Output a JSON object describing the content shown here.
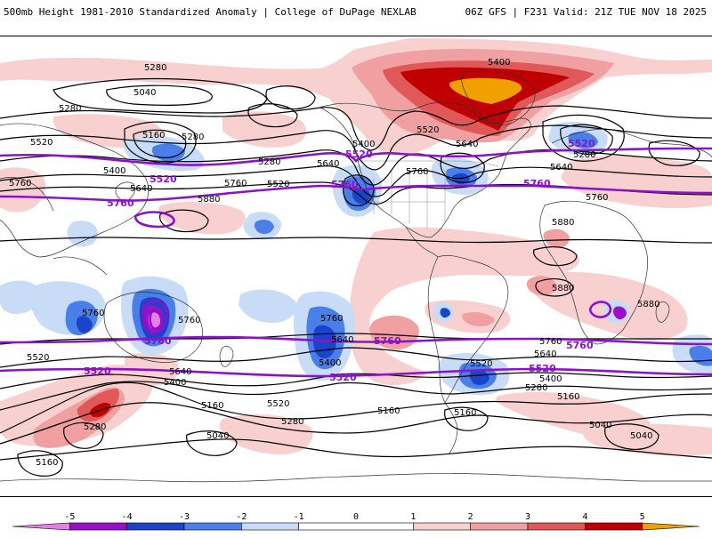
{
  "header": {
    "left_title": "500mb Height 1981-2010 Standardized Anomaly | College of DuPage NEXLAB",
    "right_title": "06Z GFS | F231 Valid: 21Z TUE NOV 18 2025"
  },
  "colors": {
    "anom_neg5": "#e87ee8",
    "anom_neg4": "#9a10c8",
    "anom_neg3": "#1c44c8",
    "anom_neg2": "#4a7ee8",
    "anom_neg1": "#c8dcf8",
    "anom_pos1": "#f8d0d0",
    "anom_pos2": "#f0a0a0",
    "anom_pos3": "#e05858",
    "anom_pos4": "#c00000",
    "anom_pos5": "#f0a000",
    "contour": "#000000",
    "highlight_contour": "#8a12c8",
    "coast": "#333333"
  },
  "colorbar": {
    "labels": [
      "-5",
      "-4",
      "-3",
      "-2",
      "-1",
      "0",
      "1",
      "2",
      "3",
      "4",
      "5"
    ],
    "range": [
      -6,
      6
    ]
  },
  "contour_labels": {
    "h5280_a": "5280",
    "h5280_b": "5280",
    "h5280_c": "5280",
    "h5280_d": "5280",
    "h5280_e": "5280",
    "h5280_f": "5280",
    "h5400_a": "5400",
    "h5400_b": "5400",
    "h5400_c": "5400",
    "h5400_d": "5400",
    "h5400_e": "5400",
    "h5520_a": "5520",
    "h5520_b": "5520",
    "h5520_c": "5520",
    "h5520_d": "5520",
    "h5520_e": "5520",
    "h5520_f": "5520",
    "h5640_a": "5640",
    "h5640_b": "5640",
    "h5640_c": "5640",
    "h5640_d": "5640",
    "h5640_e": "5640",
    "h5640_f": "5640",
    "h5640_g": "5640",
    "h5760_a": "5760",
    "h5760_b": "5760",
    "h5760_c": "5760",
    "h5760_d": "5760",
    "h5760_e": "5760",
    "h5760_f": "5760",
    "h5880_a": "5880",
    "h5880_b": "5880",
    "h5880_c": "5880",
    "h5880_d": "5880",
    "h5160_a": "5160",
    "h5160_b": "5160",
    "h5160_c": "5160",
    "h5160_d": "5160",
    "h5160_e": "5160",
    "h5160_f": "5160",
    "h5040_a": "5040",
    "h5040_b": "5040",
    "h5040_c": "5040",
    "h5040_d": "5040",
    "p5520_a": "5520",
    "p5520_b": "5520",
    "p5520_c": "5520",
    "p5520_d": "5520",
    "p5760_a": "5760",
    "p5760_b": "5760",
    "p5760_c": "5760",
    "p5760_d": "5760",
    "p5760_e": "5760"
  }
}
